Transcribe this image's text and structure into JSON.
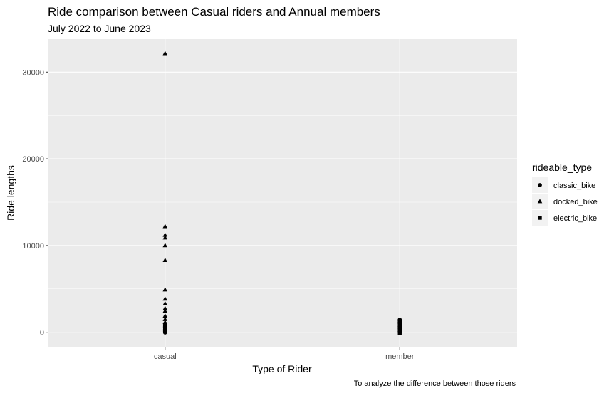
{
  "chart_data": {
    "type": "scatter",
    "title": "Ride comparison between Casual riders and Annual members",
    "subtitle": "July 2022 to June 2023",
    "caption": "To analyze the difference between those riders",
    "xlabel": "Type of Rider",
    "ylabel": "Ride lengths",
    "categories": [
      "casual",
      "member"
    ],
    "ylim": [
      -1750,
      33800
    ],
    "yticks": [
      0,
      10000,
      20000,
      30000
    ],
    "grid": true,
    "legend": {
      "title": "rideable_type",
      "position": "right",
      "entries": [
        {
          "label": "classic_bike",
          "shape": "circle"
        },
        {
          "label": "docked_bike",
          "shape": "triangle"
        },
        {
          "label": "electric_bike",
          "shape": "square"
        }
      ]
    },
    "series": [
      {
        "name": "docked_bike",
        "shape": "triangle",
        "points": [
          {
            "x": "casual",
            "y": 32150
          },
          {
            "x": "casual",
            "y": 12200
          },
          {
            "x": "casual",
            "y": 11200
          },
          {
            "x": "casual",
            "y": 10900
          },
          {
            "x": "casual",
            "y": 10000
          },
          {
            "x": "casual",
            "y": 8300
          },
          {
            "x": "casual",
            "y": 4900
          },
          {
            "x": "casual",
            "y": 3850
          },
          {
            "x": "casual",
            "y": 3300
          },
          {
            "x": "casual",
            "y": 2750
          },
          {
            "x": "casual",
            "y": 2450
          },
          {
            "x": "casual",
            "y": 1900
          },
          {
            "x": "casual",
            "y": 1500
          },
          {
            "x": "casual",
            "y": 1150
          }
        ]
      },
      {
        "name": "classic_bike",
        "shape": "circle",
        "points": [
          {
            "x": "casual",
            "y": 1000
          },
          {
            "x": "casual",
            "y": 800
          },
          {
            "x": "casual",
            "y": 650
          },
          {
            "x": "casual",
            "y": 500
          },
          {
            "x": "casual",
            "y": 350
          },
          {
            "x": "casual",
            "y": 200
          },
          {
            "x": "casual",
            "y": 80
          },
          {
            "x": "casual",
            "y": -20
          },
          {
            "x": "member",
            "y": 1450
          },
          {
            "x": "member",
            "y": 1300
          },
          {
            "x": "member",
            "y": 1150
          },
          {
            "x": "member",
            "y": 1000
          },
          {
            "x": "member",
            "y": 850
          },
          {
            "x": "member",
            "y": 700
          },
          {
            "x": "member",
            "y": 550
          },
          {
            "x": "member",
            "y": 400
          },
          {
            "x": "member",
            "y": 250
          },
          {
            "x": "member",
            "y": 100
          },
          {
            "x": "member",
            "y": 0
          }
        ]
      },
      {
        "name": "electric_bike",
        "shape": "square",
        "points": [
          {
            "x": "casual",
            "y": 450
          },
          {
            "x": "casual",
            "y": 150
          },
          {
            "x": "member",
            "y": 1200
          },
          {
            "x": "member",
            "y": 600
          },
          {
            "x": "member",
            "y": 200
          },
          {
            "x": "member",
            "y": -50
          }
        ]
      }
    ]
  }
}
